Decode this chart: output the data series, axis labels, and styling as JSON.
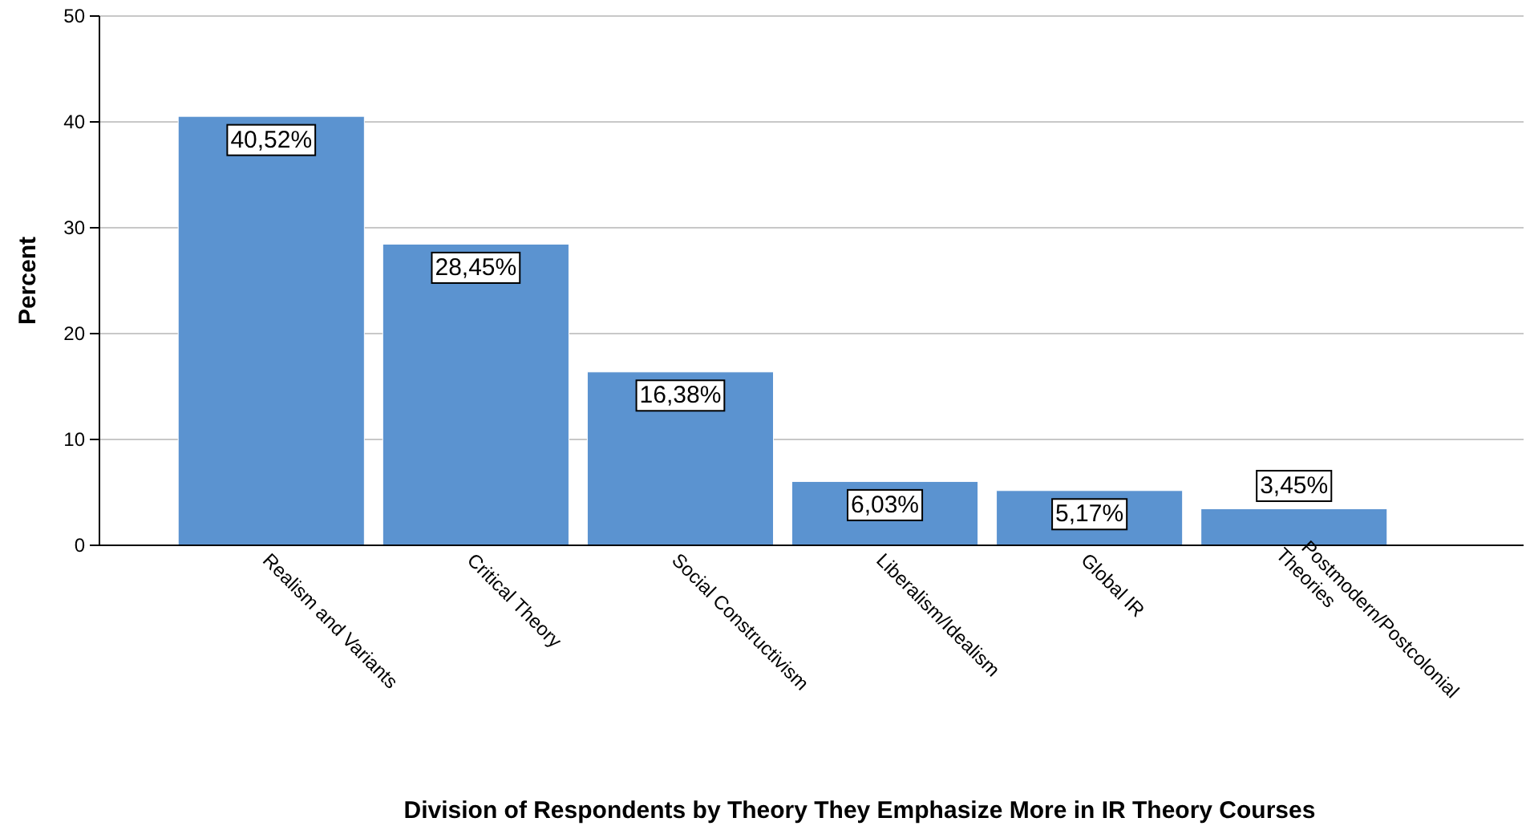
{
  "chart_data": {
    "type": "bar",
    "categories": [
      "Realism and Variants",
      "Critical Theory",
      "Social Constructivism",
      "Liberalism/Idealism",
      "Global IR",
      "Postmodern/Postcolonial Theories"
    ],
    "values": [
      40.52,
      28.45,
      16.38,
      6.03,
      5.17,
      3.45
    ],
    "value_labels": [
      "40,52%",
      "28,45%",
      "16,38%",
      "6,03%",
      "5,17%",
      "3,45%"
    ],
    "color": "#5b93d0",
    "xlabel": "Division of Respondents by Theory They Emphasize More in IR Theory Courses",
    "ylabel": "Percent",
    "ylim": [
      0,
      50
    ],
    "yticks": [
      0,
      10,
      20,
      30,
      40,
      50
    ],
    "grid": "y"
  }
}
